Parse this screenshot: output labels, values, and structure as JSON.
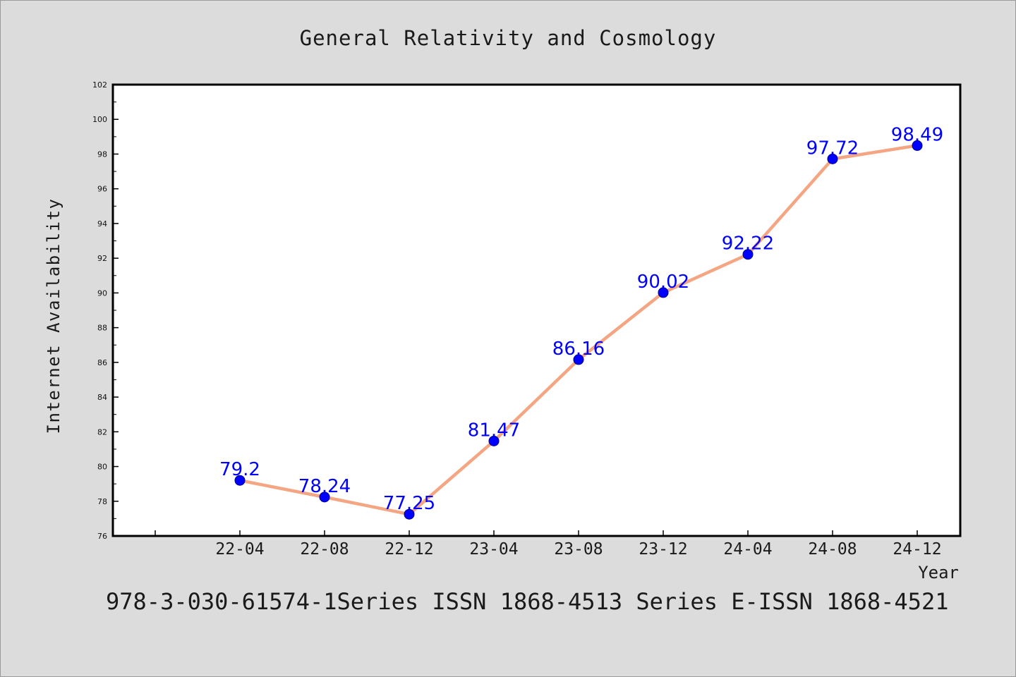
{
  "chart_data": {
    "type": "line",
    "title": "General Relativity and Cosmology",
    "xlabel": "Year",
    "ylabel": "Internet Availability",
    "categories": [
      "22-04",
      "22-08",
      "22-12",
      "23-04",
      "23-08",
      "23-12",
      "24-04",
      "24-08",
      "24-12"
    ],
    "series": [
      {
        "values": [
          79.2,
          78.24,
          77.25,
          81.47,
          86.16,
          90.02,
          92.22,
          97.72,
          98.49
        ],
        "labels": [
          "79.2",
          "78.24",
          "77.25",
          "81.47",
          "86.16",
          "90.02",
          "92.22",
          "97.72",
          "98.49"
        ],
        "line_color": "#f4a582",
        "marker_color": "#0000ff"
      }
    ],
    "yticks": [
      "76",
      "78",
      "80",
      "82",
      "84",
      "86",
      "88",
      "90",
      "92",
      "94",
      "96",
      "98",
      "100",
      "102"
    ],
    "ylim": [
      76,
      102
    ],
    "grid": false,
    "legend": "none",
    "data_label_color": "#0000ff"
  },
  "caption": "978-3-030-61574-1Series ISSN 1868-4513 Series E-ISSN 1868-4521"
}
